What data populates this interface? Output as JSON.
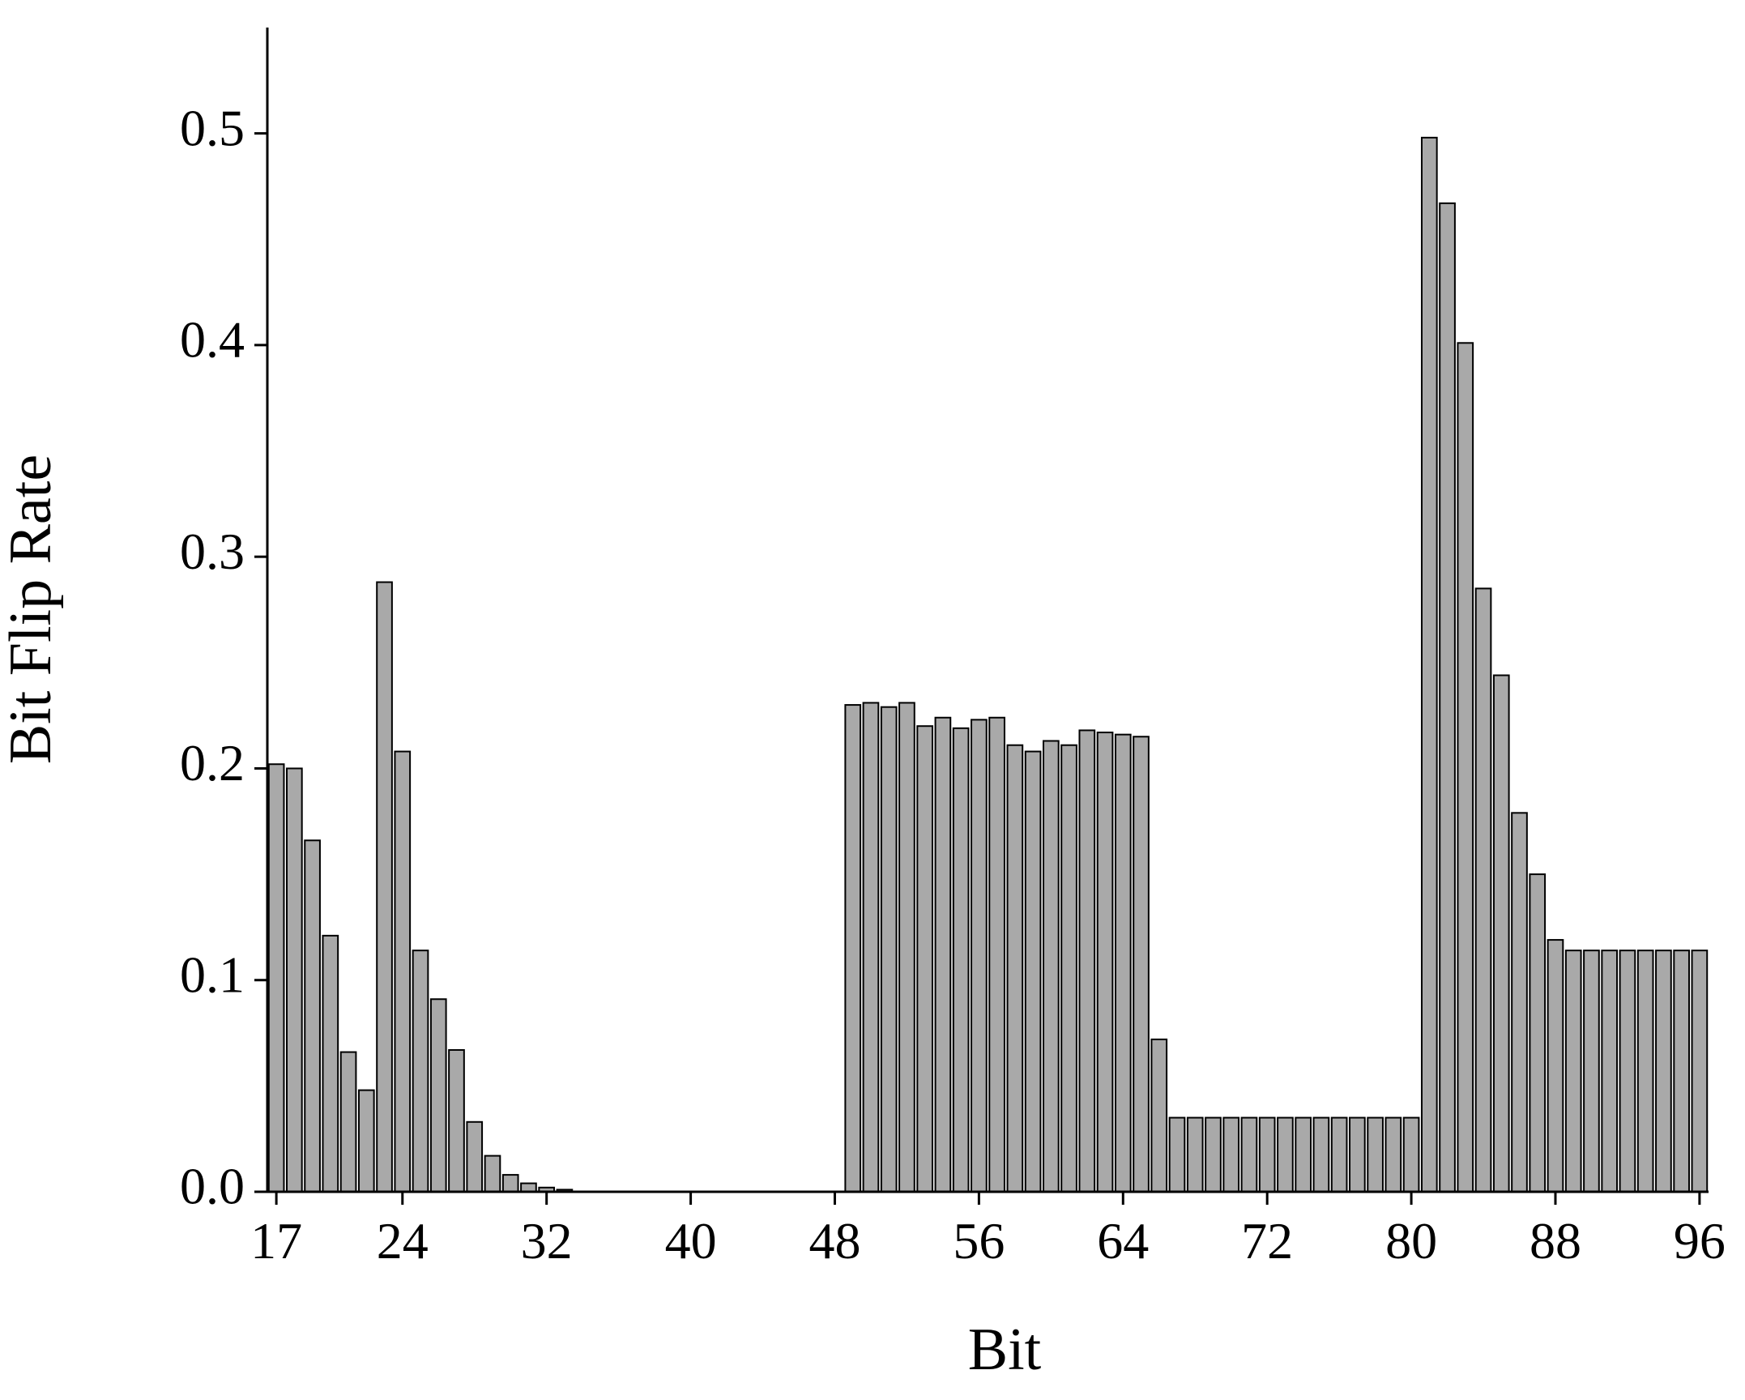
{
  "chart_data": {
    "type": "bar",
    "xlabel": "Bit",
    "ylabel": "Bit Flip Rate",
    "x": [
      17,
      18,
      19,
      20,
      21,
      22,
      23,
      24,
      25,
      26,
      27,
      28,
      29,
      30,
      31,
      32,
      33,
      34,
      35,
      36,
      37,
      38,
      39,
      40,
      41,
      42,
      43,
      44,
      45,
      46,
      47,
      48,
      49,
      50,
      51,
      52,
      53,
      54,
      55,
      56,
      57,
      58,
      59,
      60,
      61,
      62,
      63,
      64,
      65,
      66,
      67,
      68,
      69,
      70,
      71,
      72,
      73,
      74,
      75,
      76,
      77,
      78,
      79,
      80,
      81,
      82,
      83,
      84,
      85,
      86,
      87,
      88,
      89,
      90,
      91,
      92,
      93,
      94,
      95,
      96
    ],
    "values": [
      0.202,
      0.2,
      0.166,
      0.121,
      0.066,
      0.048,
      0.288,
      0.208,
      0.114,
      0.091,
      0.067,
      0.033,
      0.017,
      0.008,
      0.004,
      0.002,
      0.001,
      0,
      0,
      0,
      0,
      0,
      0,
      0,
      0,
      0,
      0,
      0,
      0,
      0,
      0,
      0,
      0.23,
      0.231,
      0.229,
      0.231,
      0.22,
      0.224,
      0.219,
      0.223,
      0.224,
      0.211,
      0.208,
      0.213,
      0.211,
      0.218,
      0.217,
      0.216,
      0.215,
      0.072,
      0.035,
      0.035,
      0.035,
      0.035,
      0.035,
      0.035,
      0.035,
      0.035,
      0.035,
      0.035,
      0.035,
      0.035,
      0.035,
      0.035,
      0.498,
      0.467,
      0.401,
      0.285,
      0.244,
      0.179,
      0.15,
      0.119,
      0.114,
      0.114,
      0.114,
      0.114,
      0.114,
      0.114,
      0.114,
      0.114
    ],
    "color": "#a9a9a9",
    "xlim": [
      16.5,
      96.5
    ],
    "xticks": [
      17,
      24,
      32,
      40,
      48,
      56,
      64,
      72,
      80,
      88,
      96
    ],
    "ylim": [
      0,
      0.55
    ],
    "yticks": [
      {
        "value": 0,
        "label": "0.0"
      },
      0.1,
      0.2,
      0.3,
      0.4,
      0.5
    ]
  }
}
